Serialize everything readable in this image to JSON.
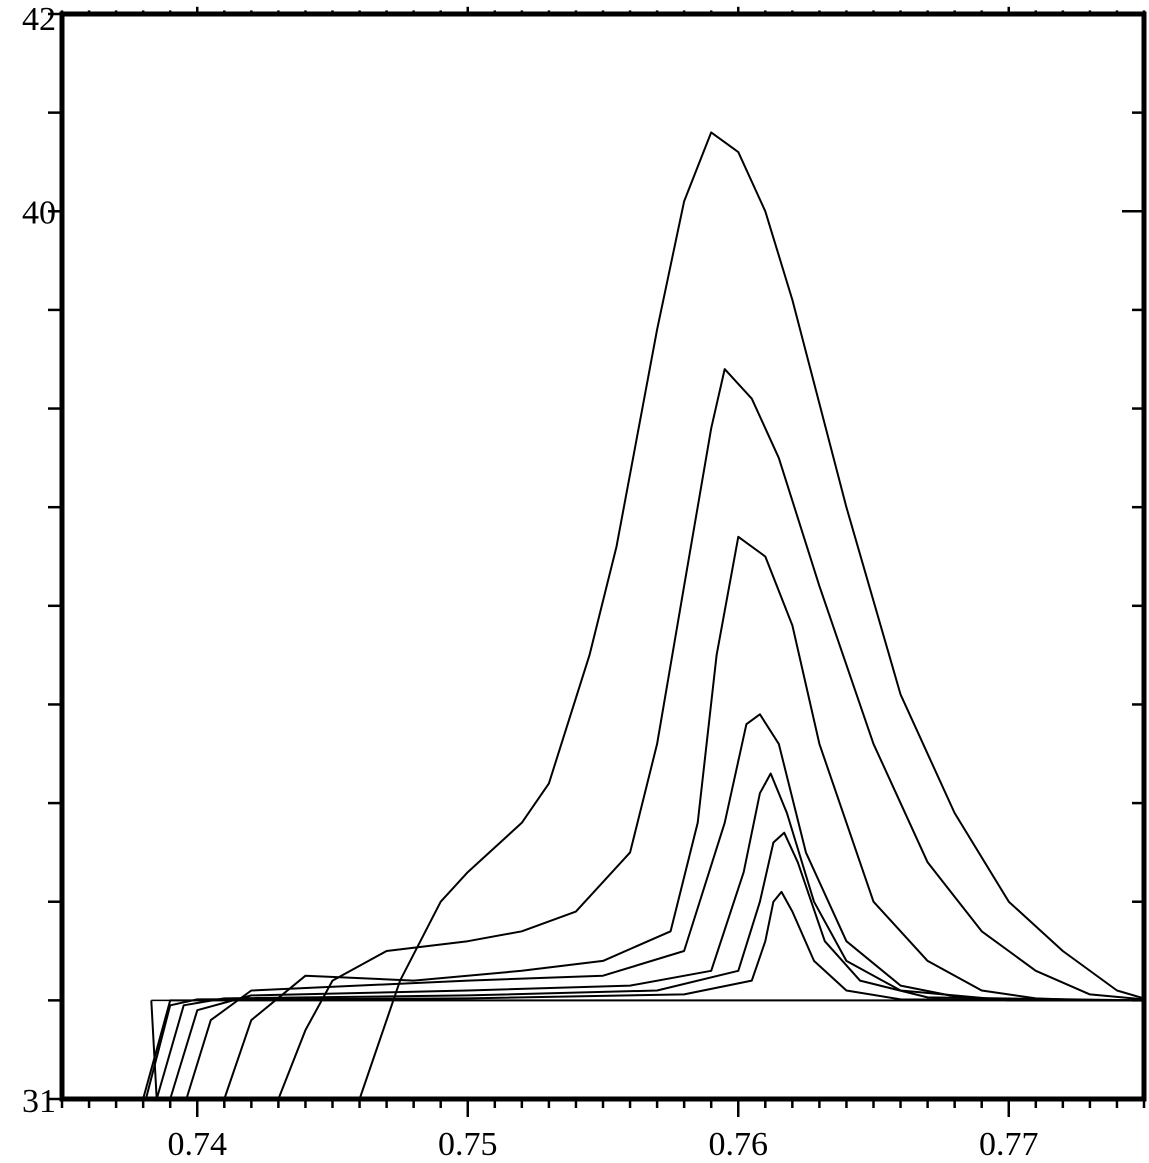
{
  "chart_data": {
    "type": "line",
    "title": "",
    "xlabel": "",
    "ylabel": "",
    "xlim": [
      0.735,
      0.775
    ],
    "ylim": [
      31,
      42
    ],
    "grid": false,
    "legend": "none",
    "x_ticks": [
      {
        "value": 0.74,
        "label": "0.74"
      },
      {
        "value": 0.75,
        "label": "0.75"
      },
      {
        "value": 0.76,
        "label": "0.76"
      },
      {
        "value": 0.77,
        "label": "0.77"
      }
    ],
    "x_minor_step": 0.001,
    "y_ticks": [
      {
        "value": 31,
        "label": "31"
      },
      {
        "value": 40,
        "label": "40"
      },
      {
        "value": 42,
        "label": "42"
      }
    ],
    "y_minor_step": 1,
    "baseline": {
      "y": 32,
      "x_start": 0.7383,
      "x_end": 0.775
    },
    "series": [
      {
        "x": [
          0.746,
          0.7475,
          0.749,
          0.75,
          0.752,
          0.753,
          0.7545,
          0.7555,
          0.757,
          0.758,
          0.759,
          0.76,
          0.761,
          0.762,
          0.764,
          0.766,
          0.768,
          0.77,
          0.772,
          0.774,
          0.775
        ],
        "y": [
          31.0,
          32.2,
          33.0,
          33.3,
          33.8,
          34.2,
          35.5,
          36.6,
          38.8,
          40.1,
          40.8,
          40.6,
          40.0,
          39.1,
          37.0,
          35.1,
          33.9,
          33.0,
          32.5,
          32.1,
          32.02
        ]
      },
      {
        "x": [
          0.743,
          0.744,
          0.745,
          0.747,
          0.75,
          0.752,
          0.754,
          0.756,
          0.757,
          0.758,
          0.759,
          0.7595,
          0.7605,
          0.7615,
          0.763,
          0.765,
          0.767,
          0.769,
          0.771,
          0.773,
          0.775
        ],
        "y": [
          31.0,
          31.7,
          32.2,
          32.5,
          32.6,
          32.7,
          32.9,
          33.5,
          34.6,
          36.2,
          37.8,
          38.4,
          38.1,
          37.5,
          36.2,
          34.6,
          33.4,
          32.7,
          32.3,
          32.06,
          32.01
        ]
      },
      {
        "x": [
          0.741,
          0.742,
          0.744,
          0.748,
          0.752,
          0.755,
          0.7575,
          0.7585,
          0.7592,
          0.76,
          0.761,
          0.762,
          0.763,
          0.765,
          0.767,
          0.769,
          0.771,
          0.773,
          0.775
        ],
        "y": [
          31.0,
          31.8,
          32.25,
          32.2,
          32.3,
          32.4,
          32.7,
          33.8,
          35.5,
          36.7,
          36.5,
          35.8,
          34.6,
          33.0,
          32.4,
          32.1,
          32.02,
          32.0,
          32.0
        ]
      },
      {
        "x": [
          0.7396,
          0.7405,
          0.742,
          0.75,
          0.755,
          0.758,
          0.7595,
          0.7603,
          0.7608,
          0.7615,
          0.7625,
          0.764,
          0.766,
          0.768,
          0.77,
          0.775
        ],
        "y": [
          31.0,
          31.8,
          32.1,
          32.2,
          32.25,
          32.5,
          33.8,
          34.8,
          34.9,
          34.6,
          33.5,
          32.6,
          32.15,
          32.04,
          32.0,
          32.0
        ]
      },
      {
        "x": [
          0.739,
          0.74,
          0.742,
          0.75,
          0.756,
          0.759,
          0.7602,
          0.7608,
          0.7612,
          0.7618,
          0.7628,
          0.764,
          0.766,
          0.77,
          0.775
        ],
        "y": [
          31.0,
          31.9,
          32.05,
          32.1,
          32.15,
          32.3,
          33.3,
          34.1,
          34.3,
          33.9,
          33.0,
          32.4,
          32.1,
          32.0,
          32.0
        ]
      },
      {
        "x": [
          0.7385,
          0.7395,
          0.741,
          0.75,
          0.757,
          0.76,
          0.7608,
          0.7613,
          0.7617,
          0.7622,
          0.7632,
          0.7645,
          0.767,
          0.775
        ],
        "y": [
          31.0,
          31.95,
          32.02,
          32.05,
          32.1,
          32.3,
          33.0,
          33.6,
          33.7,
          33.4,
          32.6,
          32.2,
          32.03,
          32.0
        ],
        "start_x": 0.7383
      },
      {
        "x": [
          0.7381,
          0.739,
          0.74,
          0.75,
          0.758,
          0.7605,
          0.761,
          0.7613,
          0.7616,
          0.762,
          0.7628,
          0.764,
          0.766,
          0.775
        ],
        "y": [
          31.0,
          31.95,
          32.01,
          32.02,
          32.06,
          32.2,
          32.6,
          33.0,
          33.1,
          32.9,
          32.4,
          32.1,
          32.01,
          32.0
        ]
      },
      {
        "x": [
          0.738,
          0.7386,
          0.739,
          0.775
        ],
        "y": [
          31.0,
          31.6,
          32.0,
          32.0
        ]
      }
    ]
  }
}
